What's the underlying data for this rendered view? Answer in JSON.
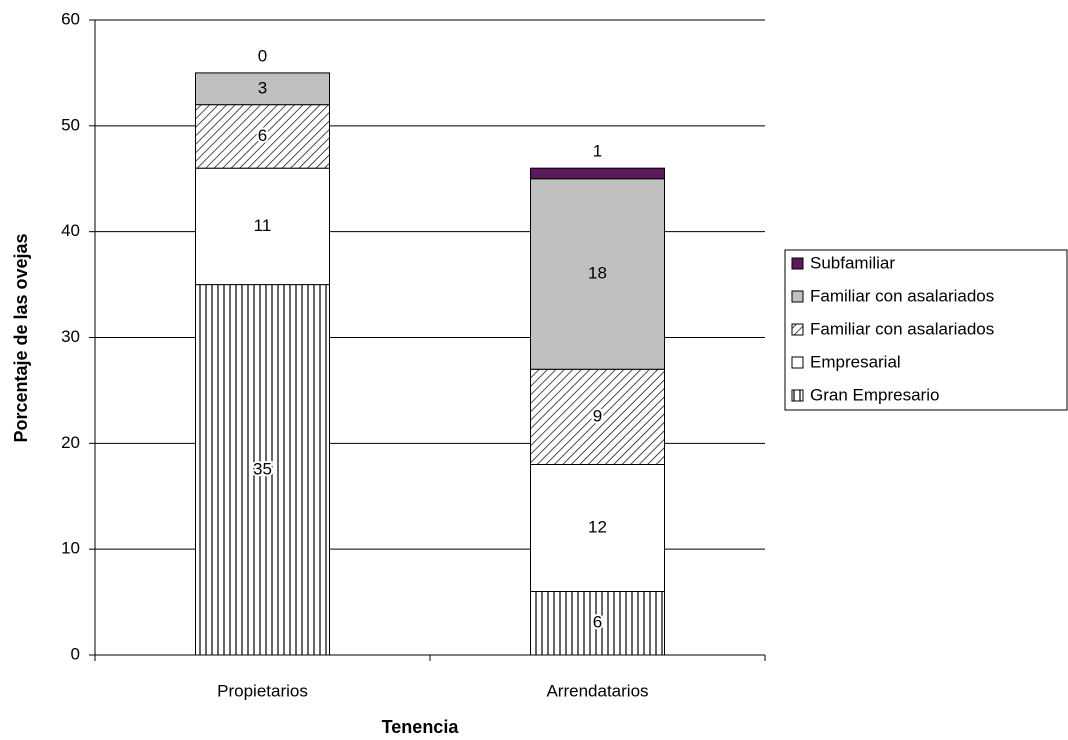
{
  "chart_data": {
    "type": "stacked_bar",
    "x_label": "Tenencia",
    "y_label": "Porcentaje de las ovejas",
    "categories": [
      "Propietarios",
      "Arrendatarios"
    ],
    "series": [
      {
        "name": "Gran Empresario",
        "color": "#000000",
        "pattern": "vertical",
        "values": [
          35,
          6
        ]
      },
      {
        "name": "Empresarial",
        "color": "#ffffff",
        "pattern": "solid",
        "values": [
          11,
          12
        ]
      },
      {
        "name": "Familiar con asalariados",
        "color": "#000000",
        "pattern": "diagonal",
        "values": [
          6,
          9
        ]
      },
      {
        "name": "Familiar con asalariados",
        "color": "#c0c0c0",
        "pattern": "solid",
        "values": [
          3,
          18
        ]
      },
      {
        "name": "Subfamiliar",
        "color": "#5c1a5c",
        "pattern": "solid",
        "values": [
          0,
          1
        ]
      }
    ],
    "ylim": [
      0,
      60
    ],
    "yticks": [
      0,
      10,
      20,
      30,
      40,
      50,
      60
    ],
    "grid": true,
    "legend": "right"
  }
}
